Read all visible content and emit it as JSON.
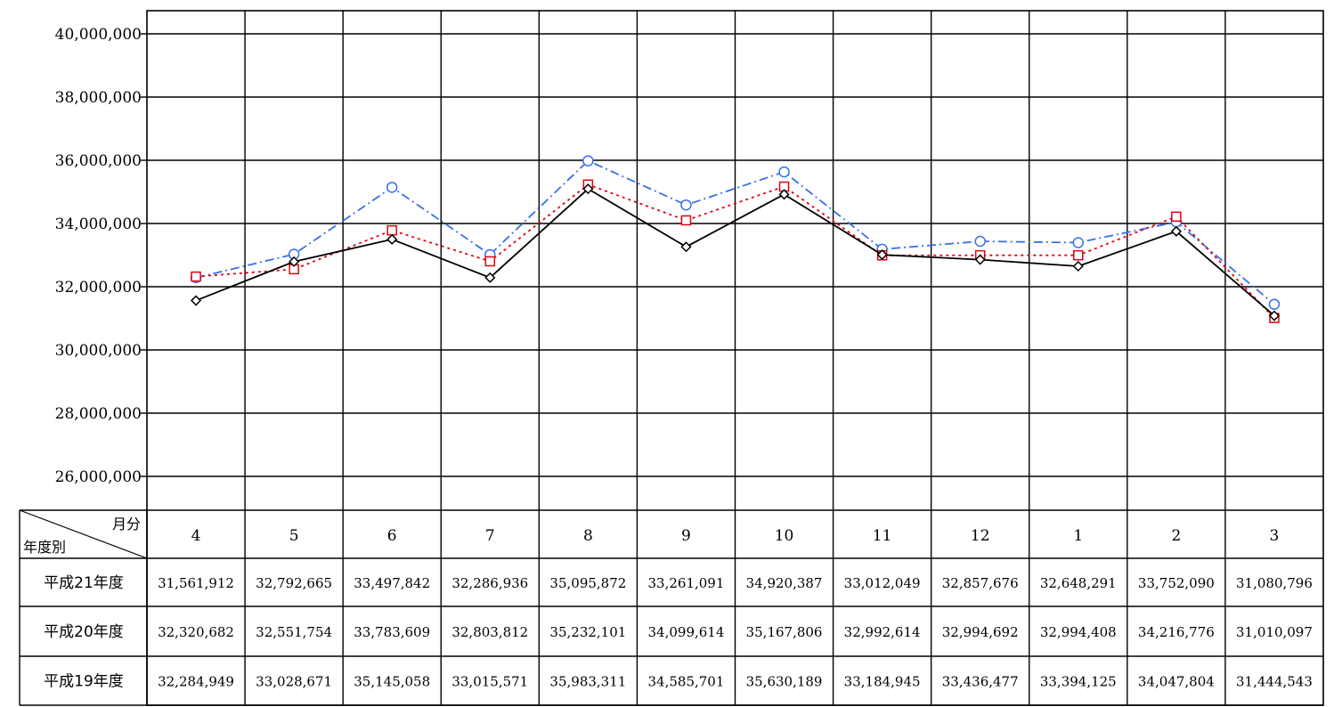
{
  "chart_data": {
    "type": "line",
    "categories": [
      "4",
      "5",
      "6",
      "7",
      "8",
      "9",
      "10",
      "11",
      "12",
      "1",
      "2",
      "3"
    ],
    "ylim": [
      25000000,
      40000000
    ],
    "yticks": [
      "26,000,000",
      "28,000,000",
      "30,000,000",
      "32,000,000",
      "34,000,000",
      "36,000,000",
      "38,000,000",
      "40,000,000"
    ],
    "ytick_values": [
      26000000,
      28000000,
      30000000,
      32000000,
      34000000,
      36000000,
      38000000,
      40000000
    ],
    "grid": true,
    "table": {
      "corner_top": "月分",
      "corner_bottom": "年度別"
    },
    "series": [
      {
        "name": "平成21年度",
        "color": "#000000",
        "marker": "diamond",
        "line": "solid",
        "values": [
          31561912,
          32792665,
          33497842,
          32286936,
          35095872,
          33261091,
          34920387,
          33012049,
          32857676,
          32648291,
          33752090,
          31080796
        ],
        "labels": [
          "31,561,912",
          "32,792,665",
          "33,497,842",
          "32,286,936",
          "35,095,872",
          "33,261,091",
          "34,920,387",
          "33,012,049",
          "32,857,676",
          "32,648,291",
          "33,752,090",
          "31,080,796"
        ]
      },
      {
        "name": "平成20年度",
        "color": "#e3000f",
        "marker": "square",
        "line": "dotted",
        "values": [
          32320682,
          32551754,
          33783609,
          32803812,
          35232101,
          34099614,
          35167806,
          32992614,
          32994692,
          32994408,
          34216776,
          31010097
        ],
        "labels": [
          "32,320,682",
          "32,551,754",
          "33,783,609",
          "32,803,812",
          "35,232,101",
          "34,099,614",
          "35,167,806",
          "32,992,614",
          "32,994,692",
          "32,994,408",
          "34,216,776",
          "31,010,097"
        ]
      },
      {
        "name": "平成19年度",
        "color": "#3a6fe8",
        "marker": "circle",
        "line": "dashdot",
        "values": [
          32284949,
          33028671,
          35145058,
          33015571,
          35983311,
          34585701,
          35630189,
          33184945,
          33436477,
          33394125,
          34047804,
          31444543
        ],
        "labels": [
          "32,284,949",
          "33,028,671",
          "35,145,058",
          "33,015,571",
          "35,983,311",
          "34,585,701",
          "35,630,189",
          "33,184,945",
          "33,436,477",
          "33,394,125",
          "34,047,804",
          "31,444,543"
        ]
      }
    ]
  }
}
